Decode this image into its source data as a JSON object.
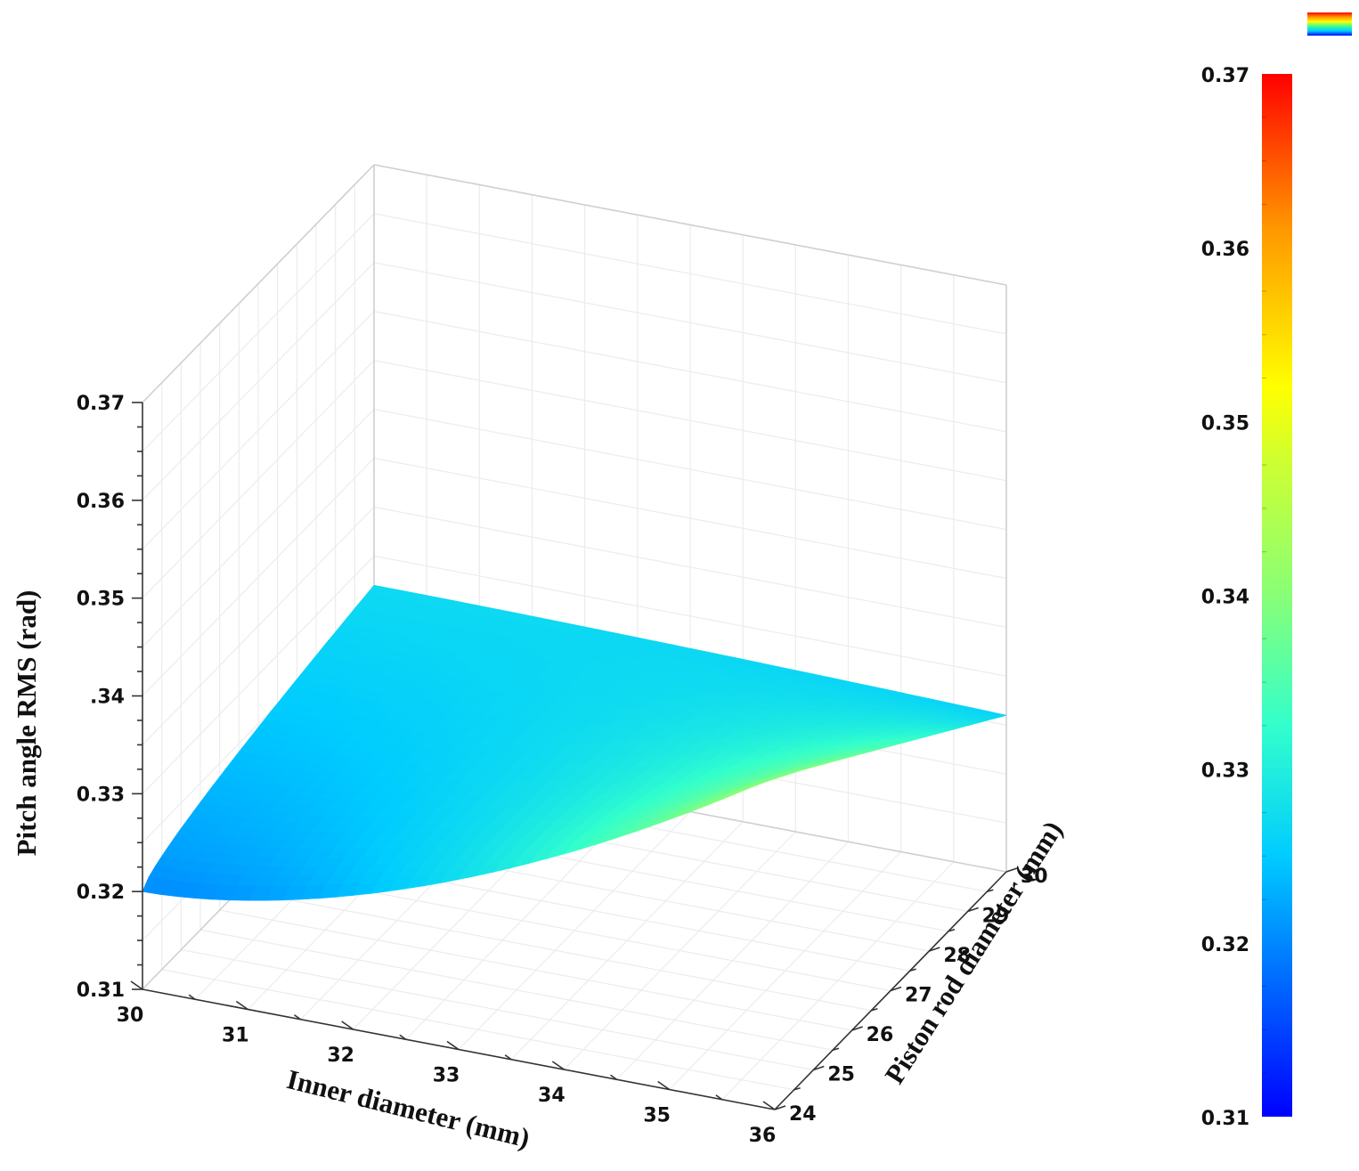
{
  "chart_data": {
    "type": "surface",
    "x_axis": {
      "label": "Inner diameter (mm)",
      "range": [
        30,
        36
      ],
      "ticks": [
        "30",
        "31",
        "32",
        "33",
        "34",
        "35",
        "36"
      ]
    },
    "y_axis": {
      "label": "Piston rod diameter (mm)",
      "range": [
        24,
        30
      ],
      "ticks": [
        "24",
        "25",
        "26",
        "27",
        "28",
        "29",
        "30"
      ]
    },
    "z_axis": {
      "label": "Pitch angle RMS (rad)",
      "range": [
        0.31,
        0.37
      ],
      "ticks": [
        "0.31",
        "0.32",
        "0.33",
        ".34",
        "0.35",
        "0.36",
        "0.37"
      ]
    },
    "colorbar": {
      "range": [
        0.31,
        0.37
      ],
      "ticks": [
        "0.31",
        "0.32",
        "0.33",
        "0.34",
        "0.35",
        "0.36",
        "0.37"
      ]
    },
    "surface_corners": [
      {
        "inner_diameter": 30,
        "piston_rod_diameter": 24,
        "rms": 0.32
      },
      {
        "inner_diameter": 30,
        "piston_rod_diameter": 30,
        "rms": 0.327
      },
      {
        "inner_diameter": 36,
        "piston_rod_diameter": 24,
        "rms": 0.344
      },
      {
        "inner_diameter": 36,
        "piston_rod_diameter": 30,
        "rms": 0.326
      }
    ],
    "grid": true,
    "legend_position": "top-right"
  }
}
